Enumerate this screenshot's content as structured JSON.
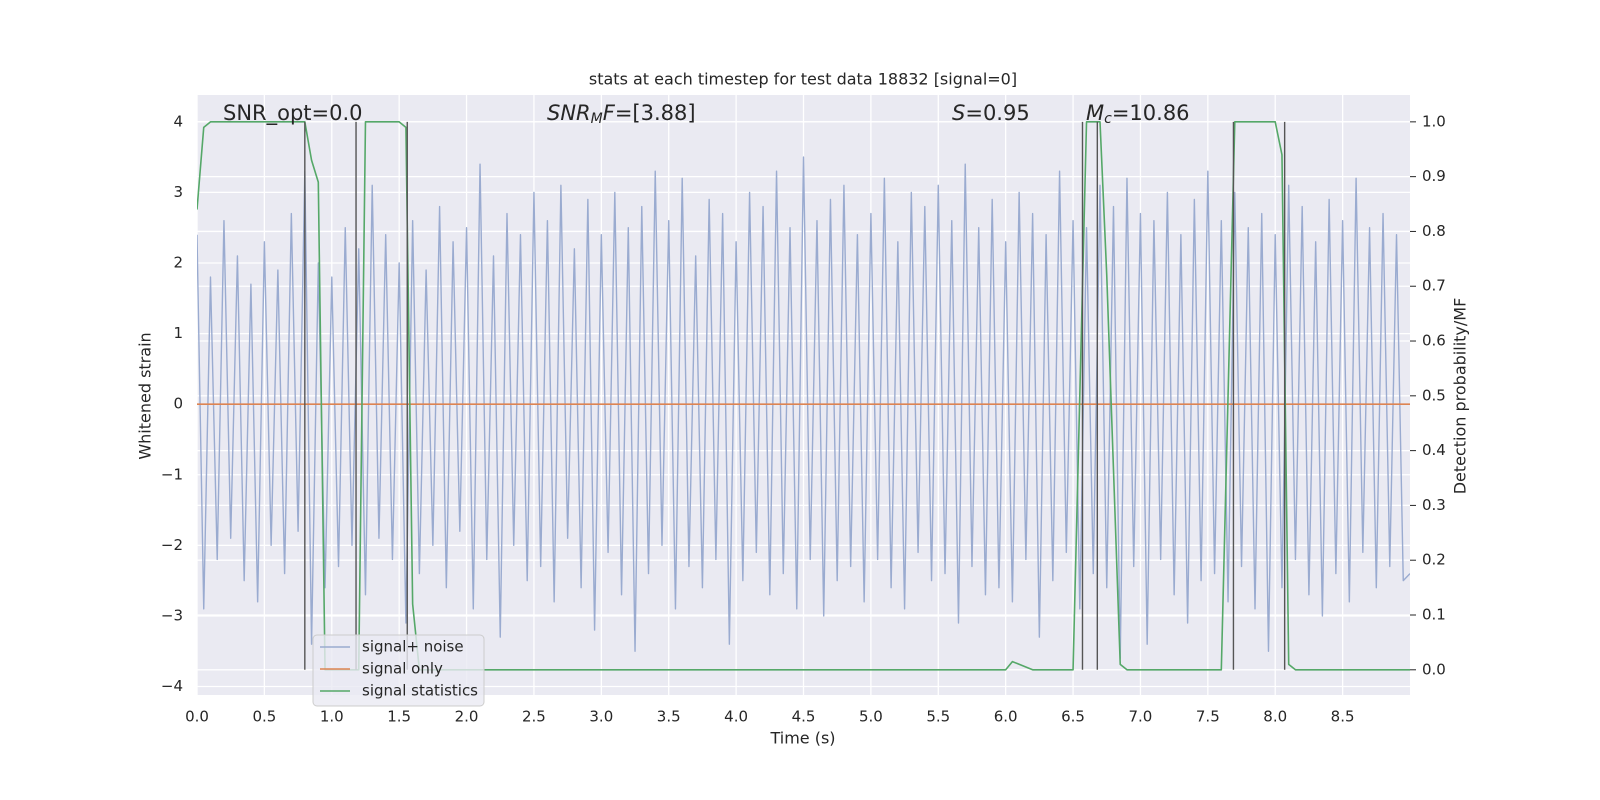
{
  "chart_data": {
    "type": "line",
    "title": "stats at each timestep for test data 18832 [signal=0]",
    "xlabel": "Time (s)",
    "ylabel": "Whitened strain",
    "y2label": "Detection probability/MF",
    "xlim": [
      0,
      9
    ],
    "ylim": [
      -4.12,
      4.38
    ],
    "y2lim": [
      -0.046,
      1.049
    ],
    "xticks": [
      {
        "value": 0,
        "label": "0.0"
      },
      0.5,
      {
        "value": 1,
        "label": "1.0"
      },
      1.5,
      {
        "value": 2,
        "label": "2.0"
      },
      2.5,
      {
        "value": 3,
        "label": "3.0"
      },
      3.5,
      {
        "value": 4,
        "label": "4.0"
      },
      4.5,
      {
        "value": 5,
        "label": "5.0"
      },
      5.5,
      {
        "value": 6,
        "label": "6.0"
      },
      6.5,
      {
        "value": 7,
        "label": "7.0"
      },
      7.5,
      {
        "value": 8,
        "label": "8.0"
      },
      8.5
    ],
    "yticks": [
      {
        "value": -4,
        "label": "−4"
      },
      {
        "value": -3,
        "label": "−3"
      },
      {
        "value": -2,
        "label": "−2"
      },
      {
        "value": -1,
        "label": "−1"
      },
      0,
      1,
      2,
      3,
      4
    ],
    "y2ticks": [
      {
        "value": 0,
        "label": "0.0"
      },
      0.1,
      0.2,
      0.3,
      0.4,
      0.5,
      0.6,
      0.7,
      0.8,
      0.9,
      {
        "value": 1,
        "label": "1.0"
      }
    ],
    "grid": true,
    "legend": "lower left",
    "series": [
      {
        "name": "signal+ noise",
        "color": "#9aabd0",
        "axis": "y",
        "x": [
          0,
          0.05,
          0.1,
          0.15,
          0.2,
          0.25,
          0.3,
          0.35,
          0.4,
          0.45,
          0.5,
          0.55,
          0.6,
          0.65,
          0.7,
          0.75,
          0.8,
          0.85,
          0.9,
          0.95,
          1,
          1.05,
          1.1,
          1.15,
          1.2,
          1.25,
          1.3,
          1.35,
          1.4,
          1.45,
          1.5,
          1.55,
          1.6,
          1.65,
          1.7,
          1.75,
          1.8,
          1.85,
          1.9,
          1.95,
          2,
          2.05,
          2.1,
          2.15,
          2.2,
          2.25,
          2.3,
          2.35,
          2.4,
          2.45,
          2.5,
          2.55,
          2.6,
          2.65,
          2.7,
          2.75,
          2.8,
          2.85,
          2.9,
          2.95,
          3,
          3.05,
          3.1,
          3.15,
          3.2,
          3.25,
          3.3,
          3.35,
          3.4,
          3.45,
          3.5,
          3.55,
          3.6,
          3.65,
          3.7,
          3.75,
          3.8,
          3.85,
          3.9,
          3.95,
          4,
          4.05,
          4.1,
          4.15,
          4.2,
          4.25,
          4.3,
          4.35,
          4.4,
          4.45,
          4.5,
          4.55,
          4.6,
          4.65,
          4.7,
          4.75,
          4.8,
          4.85,
          4.9,
          4.95,
          5,
          5.05,
          5.1,
          5.15,
          5.2,
          5.25,
          5.3,
          5.35,
          5.4,
          5.45,
          5.5,
          5.55,
          5.6,
          5.65,
          5.7,
          5.75,
          5.8,
          5.85,
          5.9,
          5.95,
          6,
          6.05,
          6.1,
          6.15,
          6.2,
          6.25,
          6.3,
          6.35,
          6.4,
          6.45,
          6.5,
          6.55,
          6.6,
          6.65,
          6.7,
          6.75,
          6.8,
          6.85,
          6.9,
          6.95,
          7,
          7.05,
          7.1,
          7.15,
          7.2,
          7.25,
          7.3,
          7.35,
          7.4,
          7.45,
          7.5,
          7.55,
          7.6,
          7.65,
          7.7,
          7.75,
          7.8,
          7.85,
          7.9,
          7.95,
          8,
          8.05,
          8.1,
          8.15,
          8.2,
          8.25,
          8.3,
          8.35,
          8.4,
          8.45,
          8.5,
          8.55,
          8.6,
          8.65,
          8.7,
          8.75,
          8.8,
          8.85,
          8.9,
          8.95,
          9
        ],
        "values": [
          2.4,
          -2.9,
          1.8,
          -2.2,
          2.6,
          -1.9,
          2.1,
          -2.5,
          1.7,
          -2.8,
          2.3,
          -2.0,
          1.9,
          -2.4,
          2.7,
          -1.8,
          3.3,
          -3.4,
          2.0,
          -2.6,
          1.8,
          -2.3,
          2.5,
          -2.0,
          2.2,
          -2.7,
          3.1,
          -1.9,
          2.4,
          -2.2,
          2.0,
          -3.1,
          2.6,
          -2.4,
          1.9,
          -2.0,
          2.8,
          -2.6,
          2.3,
          -1.8,
          2.5,
          -2.9,
          3.4,
          -2.2,
          2.1,
          -3.3,
          2.7,
          -2.0,
          2.4,
          -2.5,
          3.0,
          -2.3,
          2.6,
          -2.8,
          3.1,
          -1.9,
          2.2,
          -2.6,
          2.9,
          -3.2,
          2.4,
          -2.1,
          3.0,
          -2.7,
          2.5,
          -3.5,
          2.8,
          -2.4,
          3.3,
          -2.0,
          2.6,
          -2.9,
          3.2,
          -2.3,
          2.1,
          -2.6,
          2.9,
          -2.2,
          2.7,
          -3.4,
          2.3,
          -2.5,
          3.0,
          -2.1,
          2.8,
          -2.7,
          3.3,
          -2.4,
          2.5,
          -2.9,
          3.5,
          -2.2,
          2.6,
          -3.0,
          2.9,
          -2.5,
          3.1,
          -2.3,
          2.4,
          -2.8,
          2.7,
          -2.2,
          3.2,
          -2.6,
          2.3,
          -2.9,
          3.0,
          -2.1,
          2.8,
          -2.5,
          3.1,
          -2.4,
          2.6,
          -3.1,
          3.4,
          -2.3,
          2.5,
          -2.7,
          2.9,
          -2.6,
          2.3,
          -2.8,
          3.0,
          -2.2,
          2.7,
          -3.3,
          2.4,
          -2.5,
          3.3,
          -2.1,
          2.6,
          -2.9,
          2.5,
          -2.4,
          3.1,
          -2.6,
          2.8,
          -3.6,
          3.2,
          -2.3,
          2.7,
          -3.4,
          2.6,
          -2.2,
          3.0,
          -2.7,
          2.4,
          -3.1,
          2.9,
          -2.5,
          3.3,
          -2.4,
          2.6,
          -2.8,
          3.0,
          -2.3,
          2.5,
          -2.9,
          2.7,
          -3.5,
          2.4,
          -2.6,
          3.1,
          -2.2,
          2.8,
          -2.7,
          2.3,
          -3.0,
          2.9,
          -2.4,
          2.6,
          -2.8,
          3.2,
          -2.1,
          2.5,
          -2.6,
          2.7,
          -2.3,
          2.4,
          -2.5,
          -2.4
        ]
      },
      {
        "name": "signal only",
        "color": "#dd8452",
        "axis": "y",
        "x": [
          0,
          9
        ],
        "values": [
          0,
          0
        ]
      },
      {
        "name": "signal statistics",
        "color": "#55a868",
        "axis": "y2",
        "x": [
          0,
          0.05,
          0.1,
          0.8,
          0.85,
          0.9,
          0.95,
          1.2,
          1.25,
          1.5,
          1.55,
          1.6,
          1.65,
          6.0,
          6.05,
          6.2,
          6.5,
          6.55,
          6.6,
          6.7,
          6.75,
          6.85,
          6.9,
          7.6,
          7.7,
          8.0,
          8.05,
          8.1,
          8.15,
          9.0
        ],
        "values": [
          0.84,
          0.99,
          1.0,
          1.0,
          0.93,
          0.89,
          0.0,
          0.0,
          1.0,
          1.0,
          0.99,
          0.12,
          0.0,
          0.0,
          0.015,
          0.0,
          0.0,
          0.5,
          1.0,
          1.0,
          0.72,
          0.01,
          0.0,
          0.0,
          1.0,
          1.0,
          0.94,
          0.01,
          0.0,
          0.0
        ]
      }
    ],
    "vlines": {
      "x": [
        0.8,
        1.18,
        1.56,
        6.57,
        6.68,
        7.69,
        8.07
      ],
      "ymin": 0,
      "ymax": 1,
      "axis": "y2",
      "color": "#555555"
    },
    "annotations": [
      {
        "parts": [
          {
            "text": "SNR_opt=0.0"
          }
        ]
      },
      {
        "parts": [
          {
            "text": "SNR",
            "style": "italic"
          },
          {
            "text": "M",
            "style": "italic-sub"
          },
          {
            "text": "F",
            "style": "italic"
          },
          {
            "text": "=[3.88]"
          }
        ]
      },
      {
        "parts": [
          {
            "text": "S",
            "style": "italic"
          },
          {
            "text": "=0.95"
          }
        ]
      },
      {
        "parts": [
          {
            "text": "M",
            "style": "italic"
          },
          {
            "text": "c",
            "style": "italic-sub"
          },
          {
            "text": "=10.86"
          }
        ]
      }
    ]
  }
}
